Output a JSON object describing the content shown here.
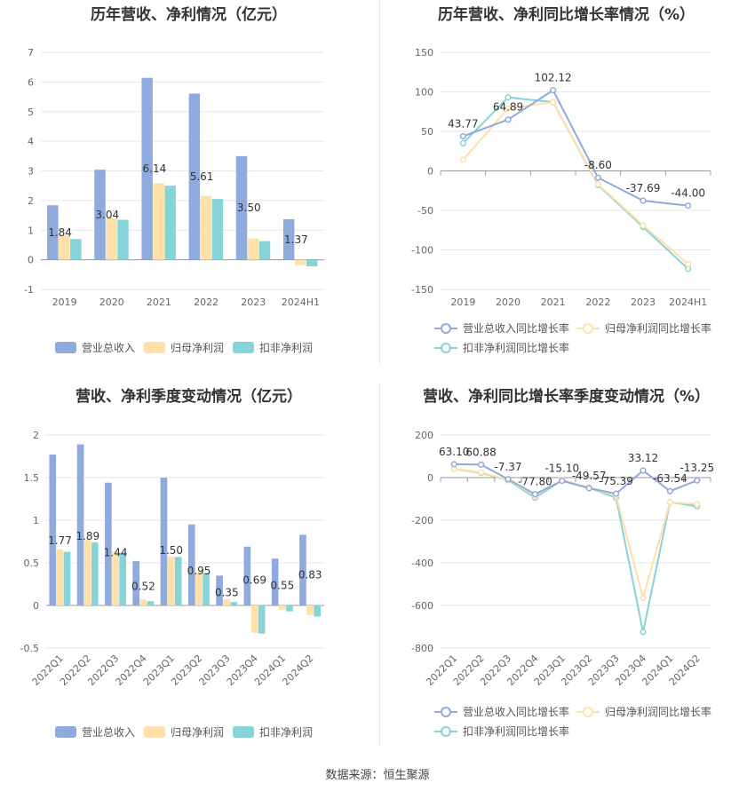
{
  "colors": {
    "revenue": "#8faadc",
    "parent": "#ffe0a8",
    "deducted": "#86d3d8",
    "axis": "#666666",
    "grid": "#e6e6e6"
  },
  "source": "数据来源：恒生聚源",
  "charts": {
    "c1": {
      "type": "bar",
      "title": "历年营收、净利情况（亿元）",
      "categories": [
        "2019",
        "2020",
        "2021",
        "2022",
        "2023",
        "2024H1"
      ],
      "series": [
        {
          "name": "营业总收入",
          "values": [
            1.84,
            3.04,
            6.14,
            5.61,
            3.5,
            1.37
          ]
        },
        {
          "name": "归母净利润",
          "values": [
            0.82,
            1.4,
            2.58,
            2.15,
            0.72,
            -0.18
          ]
        },
        {
          "name": "扣非净利润",
          "values": [
            0.7,
            1.35,
            2.5,
            2.05,
            0.63,
            -0.22
          ]
        }
      ],
      "labels": [
        "1.84",
        "3.04",
        "6.14",
        "5.61",
        "3.50",
        "1.37"
      ],
      "ylim": [
        -1,
        7
      ],
      "yticks": [
        "-1",
        "0",
        "1",
        "2",
        "3",
        "4",
        "5",
        "6",
        "7"
      ]
    },
    "c2": {
      "type": "line",
      "title": "历年营收、净利同比增长率情况（%）",
      "categories": [
        "2019",
        "2020",
        "2021",
        "2022",
        "2023",
        "2024H1"
      ],
      "series": [
        {
          "name": "营业总收入同比增长率",
          "values": [
            43.77,
            64.89,
            102.12,
            -8.6,
            -37.69,
            -44.0
          ]
        },
        {
          "name": "归母净利润同比增长率",
          "values": [
            14,
            79,
            87,
            -17,
            -69,
            -118
          ]
        },
        {
          "name": "扣非净利润同比增长率",
          "values": [
            35,
            93,
            87,
            -18,
            -71,
            -124
          ]
        }
      ],
      "labels": [
        "43.77",
        "64.89",
        "102.12",
        "-8.60",
        "-37.69",
        "-44.00"
      ],
      "ylim": [
        -150,
        150
      ],
      "yticks": [
        "-150",
        "-100",
        "-50",
        "0",
        "50",
        "100",
        "150"
      ]
    },
    "c3": {
      "type": "bar",
      "title": "营收、净利季度变动情况（亿元）",
      "categories": [
        "2022Q1",
        "2022Q2",
        "2022Q3",
        "2022Q4",
        "2023Q1",
        "2023Q2",
        "2023Q3",
        "2023Q4",
        "2024Q1",
        "2024Q2"
      ],
      "series": [
        {
          "name": "营业总收入",
          "values": [
            1.77,
            1.89,
            1.44,
            0.52,
            1.5,
            0.95,
            0.35,
            0.69,
            0.55,
            0.83
          ]
        },
        {
          "name": "归母净利润",
          "values": [
            0.66,
            0.77,
            0.63,
            0.07,
            0.57,
            0.4,
            0.07,
            -0.32,
            -0.05,
            -0.11
          ]
        },
        {
          "name": "扣非净利润",
          "values": [
            0.63,
            0.74,
            0.62,
            0.05,
            0.57,
            0.38,
            0.04,
            -0.33,
            -0.07,
            -0.13
          ]
        }
      ],
      "labels": [
        "1.77",
        "1.89",
        "1.44",
        "0.52",
        "1.50",
        "0.95",
        "0.35",
        "0.69",
        "0.55",
        "0.83"
      ],
      "ylim": [
        -0.5,
        2
      ],
      "yticks": [
        "-0.5",
        "0",
        "0.5",
        "1",
        "1.5",
        "2"
      ]
    },
    "c4": {
      "type": "line",
      "title": "营收、净利同比增长率季度变动情况（%）",
      "categories": [
        "2022Q1",
        "2022Q2",
        "2022Q3",
        "2022Q4",
        "2023Q1",
        "2023Q2",
        "2023Q3",
        "2023Q4",
        "2024Q1",
        "2024Q2"
      ],
      "series": [
        {
          "name": "营业总收入同比增长率",
          "values": [
            63.1,
            60.88,
            -7.37,
            -77.8,
            -15.1,
            -49.57,
            -75.39,
            33.12,
            -63.54,
            -13.25
          ]
        },
        {
          "name": "归母净利润同比增长率",
          "values": [
            40,
            25,
            -10,
            -85,
            -10,
            -47,
            -85,
            -565,
            -115,
            -125
          ]
        },
        {
          "name": "扣非净利润同比增长率",
          "values": [
            40,
            22,
            -12,
            -95,
            -12,
            -47,
            -95,
            -725,
            -115,
            -135
          ]
        }
      ],
      "labels": [
        "63.10",
        "60.88",
        "-7.37",
        "-77.80",
        "-15.10",
        "-49.57",
        "-75.39",
        "33.12",
        "-63.54",
        "-13.25"
      ],
      "ylim": [
        -800,
        200
      ],
      "yticks": [
        "-800",
        "-600",
        "-400",
        "-200",
        "0",
        "200"
      ]
    }
  }
}
